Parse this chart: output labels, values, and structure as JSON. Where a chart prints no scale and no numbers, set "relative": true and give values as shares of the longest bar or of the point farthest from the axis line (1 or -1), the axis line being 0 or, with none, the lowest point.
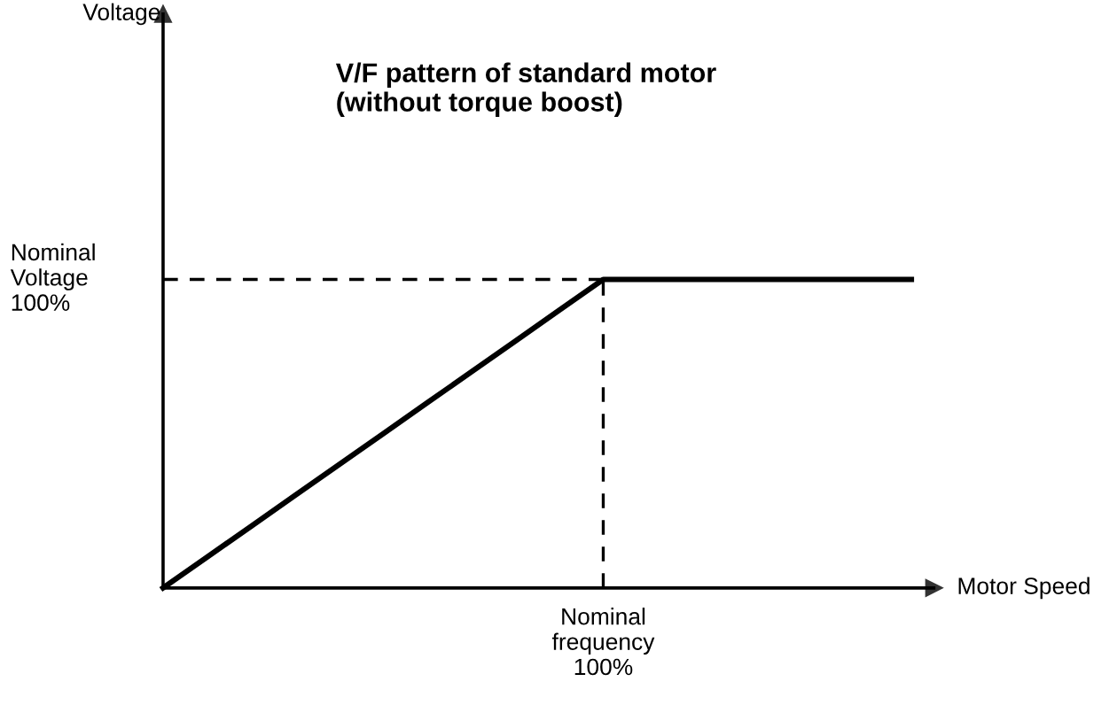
{
  "chart_data": {
    "type": "line",
    "relative": true,
    "title": "V/F pattern of standard motor\n(without torque boost)",
    "xlabel": "Motor Speed",
    "annotations": [
      "Voltage",
      "Nominal\nfrequency\n100%"
    ],
    "categories": [
      null,
      null,
      null,
      null,
      null,
      null,
      null,
      null,
      null,
      null,
      null,
      null,
      null,
      null,
      null,
      null,
      null,
      null
    ],
    "series": [
      {
        "color": "#000000",
        "values": [
          0,
          0.1,
          0.2,
          0.3,
          0.4,
          0.5,
          0.6,
          0.7,
          0.8,
          0.9,
          1,
          1,
          1,
          1,
          1,
          1,
          1,
          1
        ]
      }
    ],
    "ref_lines": [
      {
        "axis": "y",
        "value": 1,
        "label": "Nominal\nVoltage\n100%",
        "line_style": "dashed",
        "color": "#000000"
      }
    ],
    "marker": "none",
    "line_style": "solid",
    "legend": false
  }
}
